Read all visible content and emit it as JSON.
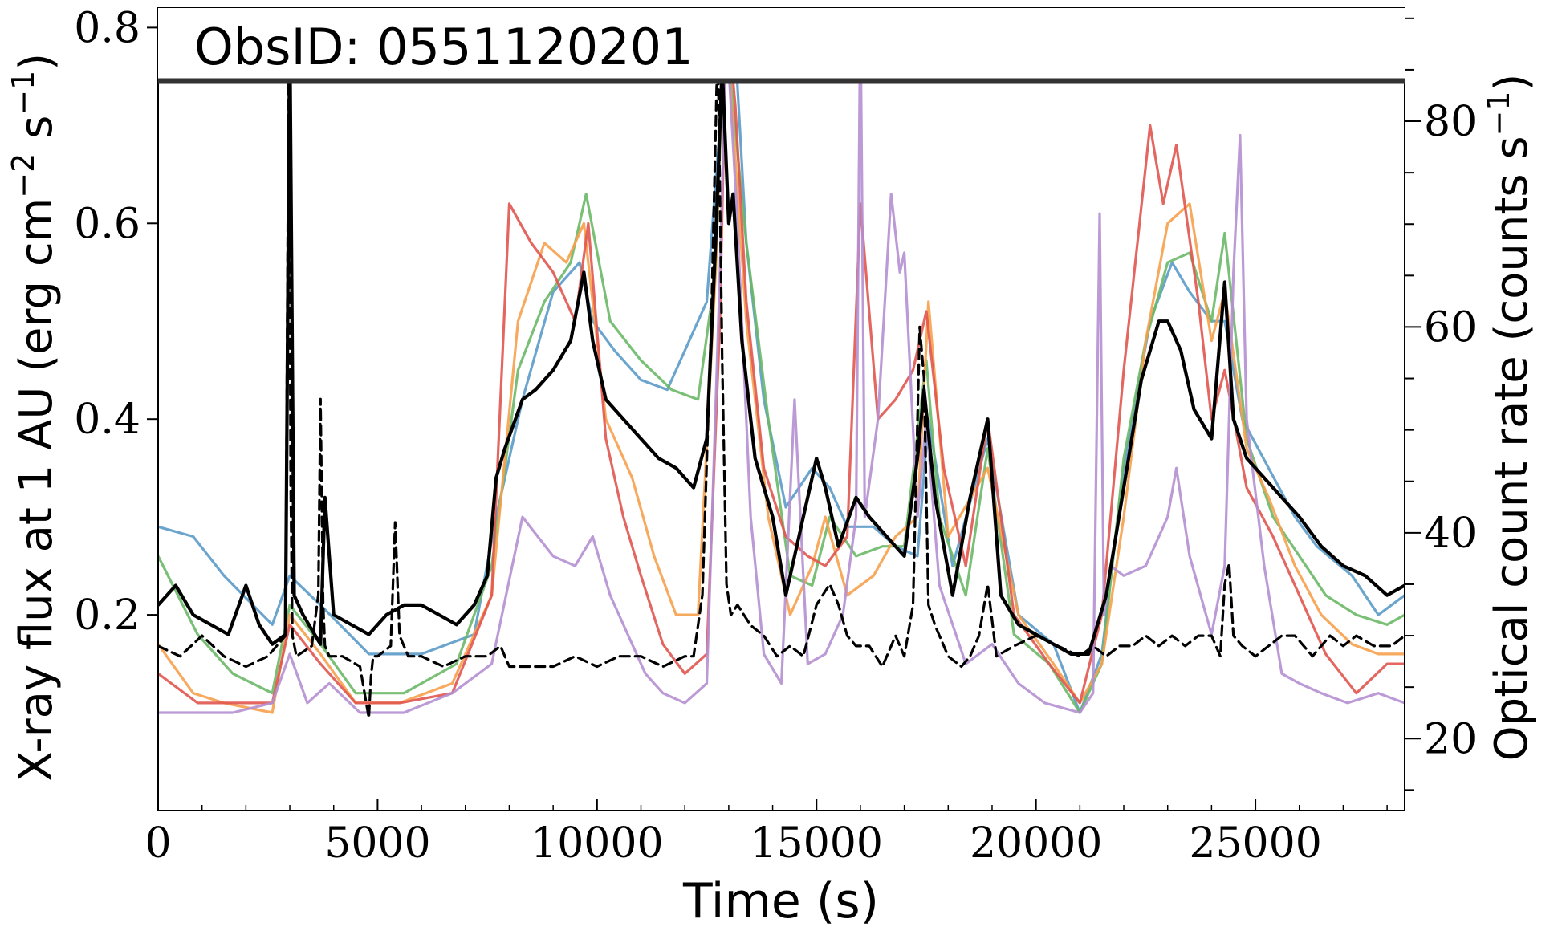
{
  "chart_data": {
    "type": "line",
    "title": "ObsID: 0551120201",
    "xlabel": "Time (s)",
    "ylabel_left": "X-ray flux at 1 AU (erg cm$^{-2}$ s$^{-1}$)",
    "ylabel_left_parts": [
      "X-ray flux at 1 AU (erg cm",
      "−2",
      " s",
      "−1",
      ")"
    ],
    "ylabel_right": "Optical count rate (counts s$^{-1}$)",
    "ylabel_right_parts": [
      "Optical count rate (counts s",
      "−1",
      ")"
    ],
    "xlim": [
      0,
      28400
    ],
    "ylim_left": [
      0.0,
      0.82
    ],
    "ylim_right": [
      13,
      91
    ],
    "x_ticks": [
      0,
      5000,
      10000,
      15000,
      20000,
      25000
    ],
    "x_tick_labels": [
      "0",
      "5000",
      "10000",
      "15000",
      "20000",
      "25000"
    ],
    "y_left_ticks": [
      0.2,
      0.4,
      0.6,
      0.8
    ],
    "y_left_tick_labels": [
      "0.2",
      "0.4",
      "0.6",
      "0.8"
    ],
    "y_right_ticks": [
      20,
      40,
      60,
      80
    ],
    "y_right_tick_labels": [
      "20",
      "40",
      "60",
      "80"
    ],
    "grid": false,
    "legend": "none",
    "series": [
      {
        "color": "#5b9bc8",
        "axis": "left",
        "style": "solid",
        "x": [
          0,
          800,
          1500,
          2600,
          3000,
          3700,
          4800,
          6000,
          7200,
          7700,
          8300,
          9000,
          9600,
          9900,
          10400,
          11000,
          11600,
          12000,
          12500,
          12800,
          12950,
          13150,
          13400,
          13800,
          14300,
          14900,
          15300,
          15700,
          16300,
          16800,
          17300,
          17550,
          18100,
          18900,
          19600,
          20400,
          21000,
          21500,
          22000,
          22600,
          23100,
          23500,
          24000,
          24300,
          24700,
          25300,
          25900,
          26400,
          27200,
          27800,
          28400
        ],
        "y": [
          0.29,
          0.28,
          0.24,
          0.19,
          0.24,
          0.21,
          0.16,
          0.16,
          0.18,
          0.3,
          0.42,
          0.53,
          0.56,
          0.5,
          0.47,
          0.44,
          0.43,
          0.47,
          0.52,
          0.7,
          0.82,
          0.78,
          0.58,
          0.42,
          0.31,
          0.35,
          0.33,
          0.29,
          0.29,
          0.27,
          0.26,
          0.4,
          0.25,
          0.38,
          0.2,
          0.17,
          0.1,
          0.16,
          0.35,
          0.5,
          0.56,
          0.53,
          0.5,
          0.5,
          0.4,
          0.35,
          0.3,
          0.27,
          0.24,
          0.2,
          0.22
        ]
      },
      {
        "color": "#6ab867",
        "axis": "left",
        "style": "solid",
        "x": [
          0,
          900,
          1700,
          2600,
          3000,
          3700,
          4500,
          5600,
          6800,
          7600,
          8200,
          8800,
          9400,
          9750,
          10300,
          11000,
          11700,
          12300,
          12700,
          12900,
          13100,
          13400,
          13900,
          14400,
          14900,
          15300,
          15900,
          16500,
          17000,
          17500,
          17800,
          18400,
          18900,
          19500,
          20300,
          21000,
          21500,
          22000,
          22500,
          23000,
          23500,
          24000,
          24300,
          24800,
          25400,
          26000,
          26600,
          27300,
          28000,
          28400
        ],
        "y": [
          0.26,
          0.18,
          0.14,
          0.12,
          0.21,
          0.17,
          0.12,
          0.12,
          0.15,
          0.25,
          0.45,
          0.52,
          0.56,
          0.63,
          0.5,
          0.46,
          0.43,
          0.42,
          0.55,
          0.8,
          0.72,
          0.58,
          0.4,
          0.24,
          0.23,
          0.3,
          0.26,
          0.27,
          0.27,
          0.46,
          0.3,
          0.22,
          0.37,
          0.18,
          0.15,
          0.1,
          0.15,
          0.36,
          0.48,
          0.56,
          0.57,
          0.5,
          0.59,
          0.38,
          0.3,
          0.26,
          0.22,
          0.2,
          0.19,
          0.2
        ]
      },
      {
        "color": "#f6a04d",
        "axis": "left",
        "style": "solid",
        "x": [
          0,
          800,
          1500,
          2600,
          3000,
          3700,
          4500,
          5500,
          6700,
          7600,
          8200,
          8800,
          9300,
          9700,
          10200,
          10800,
          11300,
          11800,
          12300,
          12700,
          12900,
          13100,
          13400,
          13900,
          14400,
          14900,
          15200,
          15700,
          16300,
          16800,
          17300,
          17550,
          18000,
          18900,
          19600,
          20400,
          21000,
          21500,
          22000,
          22500,
          23000,
          23500,
          24000,
          24300,
          24800,
          25300,
          25900,
          26500,
          27200,
          27800,
          28400
        ],
        "y": [
          0.17,
          0.12,
          0.11,
          0.1,
          0.2,
          0.16,
          0.11,
          0.11,
          0.13,
          0.22,
          0.5,
          0.58,
          0.56,
          0.6,
          0.4,
          0.34,
          0.26,
          0.2,
          0.2,
          0.55,
          0.82,
          0.7,
          0.5,
          0.3,
          0.2,
          0.25,
          0.3,
          0.22,
          0.24,
          0.28,
          0.3,
          0.52,
          0.28,
          0.35,
          0.2,
          0.15,
          0.11,
          0.15,
          0.3,
          0.48,
          0.6,
          0.62,
          0.48,
          0.53,
          0.37,
          0.32,
          0.25,
          0.2,
          0.17,
          0.16,
          0.16
        ]
      },
      {
        "color": "#e0574f",
        "axis": "left",
        "style": "solid",
        "x": [
          0,
          900,
          1700,
          2600,
          3000,
          3700,
          4500,
          5500,
          6700,
          7600,
          8000,
          8500,
          9000,
          9500,
          9800,
          10200,
          10600,
          11000,
          11500,
          12000,
          12500,
          12800,
          12950,
          13150,
          13400,
          13800,
          14300,
          14800,
          15200,
          15700,
          16000,
          16400,
          16800,
          17200,
          17500,
          17900,
          18400,
          18900,
          19500,
          20300,
          21000,
          21500,
          22000,
          22600,
          22900,
          23200,
          23700,
          24000,
          24300,
          24800,
          25400,
          26000,
          26600,
          27300,
          28000,
          28400
        ],
        "y": [
          0.14,
          0.11,
          0.11,
          0.11,
          0.19,
          0.15,
          0.11,
          0.11,
          0.12,
          0.22,
          0.62,
          0.58,
          0.55,
          0.5,
          0.6,
          0.38,
          0.3,
          0.24,
          0.17,
          0.14,
          0.16,
          0.5,
          0.82,
          0.72,
          0.52,
          0.35,
          0.28,
          0.26,
          0.25,
          0.28,
          0.62,
          0.4,
          0.42,
          0.45,
          0.51,
          0.35,
          0.25,
          0.4,
          0.2,
          0.15,
          0.11,
          0.2,
          0.45,
          0.7,
          0.62,
          0.68,
          0.52,
          0.4,
          0.45,
          0.33,
          0.28,
          0.22,
          0.16,
          0.12,
          0.15,
          0.15
        ]
      },
      {
        "color": "#b48fd1",
        "axis": "left",
        "style": "solid",
        "x": [
          0,
          900,
          1700,
          2600,
          3000,
          3400,
          3900,
          4600,
          5600,
          6700,
          7600,
          8300,
          9000,
          9500,
          9900,
          10300,
          10700,
          11100,
          11500,
          12000,
          12500,
          12800,
          12950,
          13200,
          13500,
          13800,
          14200,
          14500,
          14800,
          15200,
          15600,
          15900,
          16000,
          16100,
          16400,
          16700,
          16900,
          17000,
          17300,
          17500,
          17800,
          18400,
          19000,
          19600,
          20200,
          21000,
          21300,
          21450,
          21550,
          21700,
          22000,
          22500,
          23000,
          23200,
          23500,
          24000,
          24300,
          24500,
          24650,
          24800,
          25200,
          25600,
          26000,
          26500,
          27100,
          27800,
          28400
        ],
        "y": [
          0.1,
          0.1,
          0.1,
          0.11,
          0.16,
          0.11,
          0.13,
          0.1,
          0.1,
          0.12,
          0.15,
          0.3,
          0.26,
          0.25,
          0.28,
          0.22,
          0.18,
          0.14,
          0.12,
          0.11,
          0.13,
          0.55,
          0.8,
          0.6,
          0.3,
          0.16,
          0.13,
          0.42,
          0.15,
          0.16,
          0.2,
          0.3,
          0.82,
          0.3,
          0.4,
          0.63,
          0.55,
          0.57,
          0.3,
          0.4,
          0.23,
          0.15,
          0.17,
          0.13,
          0.11,
          0.1,
          0.12,
          0.61,
          0.2,
          0.25,
          0.24,
          0.25,
          0.3,
          0.35,
          0.26,
          0.18,
          0.25,
          0.55,
          0.69,
          0.4,
          0.25,
          0.14,
          0.13,
          0.12,
          0.11,
          0.12,
          0.11
        ]
      },
      {
        "color": "#000000",
        "axis": "left",
        "style": "solid",
        "width": 4.2,
        "x": [
          0,
          400,
          800,
          1200,
          1600,
          2000,
          2300,
          2600,
          2900,
          3000,
          3100,
          3300,
          3700,
          3800,
          4000,
          4400,
          4800,
          5200,
          5600,
          6000,
          6400,
          6800,
          7200,
          7500,
          7700,
          7900,
          8300,
          8600,
          9000,
          9400,
          9700,
          9900,
          10200,
          10600,
          11000,
          11400,
          11800,
          12200,
          12500,
          12700,
          12850,
          13000,
          13100,
          13300,
          13600,
          14000,
          14300,
          14700,
          15000,
          15200,
          15500,
          15900,
          16200,
          16600,
          17000,
          17300,
          17450,
          17700,
          18100,
          18500,
          18900,
          19200,
          19600,
          20000,
          20400,
          20800,
          21200,
          21600,
          22000,
          22400,
          22800,
          23000,
          23300,
          23600,
          24000,
          24300,
          24500,
          24800,
          25200,
          25600,
          26000,
          26500,
          27000,
          27500,
          28000,
          28400
        ],
        "y": [
          0.21,
          0.23,
          0.2,
          0.19,
          0.18,
          0.23,
          0.19,
          0.17,
          0.18,
          0.8,
          0.22,
          0.2,
          0.17,
          0.32,
          0.2,
          0.19,
          0.18,
          0.2,
          0.21,
          0.21,
          0.2,
          0.19,
          0.21,
          0.24,
          0.34,
          0.37,
          0.42,
          0.43,
          0.45,
          0.48,
          0.55,
          0.48,
          0.42,
          0.4,
          0.38,
          0.36,
          0.35,
          0.33,
          0.38,
          0.58,
          0.76,
          0.6,
          0.63,
          0.48,
          0.36,
          0.3,
          0.22,
          0.3,
          0.36,
          0.33,
          0.27,
          0.32,
          0.3,
          0.28,
          0.26,
          0.36,
          0.43,
          0.32,
          0.22,
          0.32,
          0.4,
          0.22,
          0.19,
          0.18,
          0.17,
          0.16,
          0.16,
          0.22,
          0.33,
          0.44,
          0.5,
          0.5,
          0.47,
          0.41,
          0.38,
          0.54,
          0.4,
          0.36,
          0.34,
          0.32,
          0.3,
          0.27,
          0.25,
          0.24,
          0.22,
          0.23
        ]
      },
      {
        "color": "#000000",
        "axis": "right",
        "style": "dashed",
        "x": [
          0,
          500,
          1000,
          1500,
          2000,
          2500,
          2900,
          2980,
          3020,
          3060,
          3150,
          3500,
          3650,
          3700,
          3760,
          3800,
          3900,
          4200,
          4600,
          4800,
          4850,
          4900,
          5000,
          5300,
          5400,
          5500,
          5700,
          6000,
          6500,
          7000,
          7500,
          7800,
          8000,
          8500,
          9000,
          9500,
          10000,
          10500,
          11000,
          11500,
          12000,
          12200,
          12400,
          12600,
          12750,
          12850,
          12950,
          13050,
          13200,
          13500,
          13800,
          14100,
          14400,
          14700,
          15000,
          15300,
          15500,
          15700,
          15900,
          16200,
          16500,
          16800,
          17000,
          17200,
          17350,
          17450,
          17550,
          17700,
          18000,
          18300,
          18500,
          18700,
          18900,
          19100,
          19500,
          20000,
          20500,
          21000,
          21300,
          21600,
          21900,
          22200,
          22500,
          22800,
          23100,
          23400,
          23700,
          24000,
          24200,
          24300,
          24400,
          24500,
          24700,
          25000,
          25300,
          25600,
          25900,
          26300,
          26700,
          27000,
          27300,
          27700,
          28100,
          28400
        ],
        "y": [
          29,
          28,
          30,
          28,
          27,
          28,
          30,
          90,
          45,
          30,
          28,
          29,
          34,
          53,
          33,
          29,
          28,
          28,
          27,
          22,
          26,
          28,
          28,
          29,
          41,
          30,
          28,
          28,
          27,
          28,
          28,
          29,
          27,
          27,
          27,
          28,
          27,
          28,
          28,
          27,
          28,
          28,
          34,
          60,
          88,
          57,
          35,
          32,
          33,
          31,
          30,
          28,
          29,
          28,
          33,
          35,
          33,
          30,
          29,
          29,
          27,
          30,
          28,
          33,
          60,
          55,
          33,
          31,
          28,
          27,
          28,
          30,
          35,
          28,
          29,
          30,
          29,
          28,
          29,
          28,
          29,
          29,
          30,
          29,
          30,
          29,
          30,
          30,
          28,
          35,
          37,
          30,
          29,
          28,
          29,
          30,
          30,
          28,
          30,
          29,
          30,
          29,
          29,
          30
        ]
      }
    ]
  }
}
